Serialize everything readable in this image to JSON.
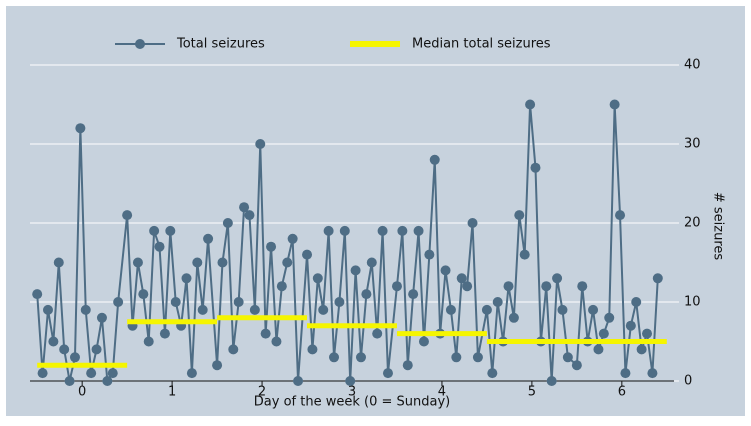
{
  "chart_data": {
    "type": "line",
    "x_label": "Day of the week (0 = Sunday)",
    "y_label": "# seizures",
    "xlim": [
      -0.58,
      6.58
    ],
    "ylim": [
      0,
      40
    ],
    "xticks": [
      0,
      1,
      2,
      3,
      4,
      5,
      6
    ],
    "yticks": [
      0,
      10,
      20,
      30,
      40
    ],
    "grid": true,
    "legend": "top",
    "series": [
      {
        "name": "Total seizures",
        "color": "#4e6d85",
        "marker": "circle",
        "x": [
          -0.5,
          -0.44,
          -0.38,
          -0.32,
          -0.26,
          -0.2,
          -0.14,
          -0.08,
          -0.02,
          0.04,
          0.1,
          0.16,
          0.22,
          0.28,
          0.34,
          0.4,
          0.5,
          0.56,
          0.62,
          0.68,
          0.74,
          0.8,
          0.86,
          0.92,
          0.98,
          1.04,
          1.1,
          1.16,
          1.22,
          1.28,
          1.34,
          1.4,
          1.5,
          1.56,
          1.62,
          1.68,
          1.74,
          1.8,
          1.86,
          1.92,
          1.98,
          2.04,
          2.1,
          2.16,
          2.22,
          2.28,
          2.34,
          2.4,
          2.5,
          2.56,
          2.62,
          2.68,
          2.74,
          2.8,
          2.86,
          2.92,
          2.98,
          3.04,
          3.1,
          3.16,
          3.22,
          3.28,
          3.34,
          3.4,
          3.5,
          3.56,
          3.62,
          3.68,
          3.74,
          3.8,
          3.86,
          3.92,
          3.98,
          4.04,
          4.1,
          4.16,
          4.22,
          4.28,
          4.34,
          4.4,
          4.5,
          4.56,
          4.62,
          4.68,
          4.74,
          4.8,
          4.86,
          4.92,
          4.98,
          5.04,
          5.1,
          5.16,
          5.22,
          5.28,
          5.34,
          5.4,
          5.5,
          5.56,
          5.62,
          5.68,
          5.74,
          5.8,
          5.86,
          5.92,
          5.98,
          6.04,
          6.1,
          6.16,
          6.22,
          6.28,
          6.34,
          6.4
        ],
        "values": [
          11,
          1,
          9,
          5,
          15,
          4,
          0,
          3,
          32,
          9,
          1,
          4,
          8,
          0,
          1,
          10,
          21,
          7,
          15,
          11,
          5,
          19,
          17,
          6,
          19,
          10,
          7,
          13,
          1,
          15,
          9,
          18,
          2,
          15,
          20,
          4,
          10,
          22,
          21,
          9,
          30,
          6,
          17,
          5,
          12,
          15,
          18,
          0,
          16,
          4,
          13,
          9,
          19,
          3,
          10,
          19,
          0,
          14,
          3,
          11,
          15,
          6,
          19,
          1,
          12,
          19,
          2,
          11,
          19,
          5,
          16,
          28,
          6,
          14,
          9,
          3,
          13,
          12,
          20,
          3,
          9,
          1,
          10,
          5,
          12,
          8,
          21,
          16,
          35,
          27,
          5,
          12,
          0,
          13,
          9,
          3,
          2,
          12,
          5,
          9,
          4,
          6,
          8,
          35,
          21,
          1,
          7,
          10,
          4,
          6,
          1,
          13
        ]
      },
      {
        "name": "Median total seizures",
        "color": "#f5f500",
        "x": [
          -0.5,
          0.5,
          0.5,
          0.5,
          1.5,
          1.5,
          1.5,
          2.5,
          2.5,
          2.5,
          3.5,
          3.5,
          3.5,
          4.5,
          4.5,
          4.5,
          5.5,
          5.5,
          5.5,
          6.5
        ],
        "values": [
          2,
          2,
          null,
          7.5,
          7.5,
          null,
          8,
          8,
          null,
          7,
          7,
          null,
          6,
          6,
          null,
          5,
          5,
          null,
          5,
          5
        ]
      }
    ]
  }
}
